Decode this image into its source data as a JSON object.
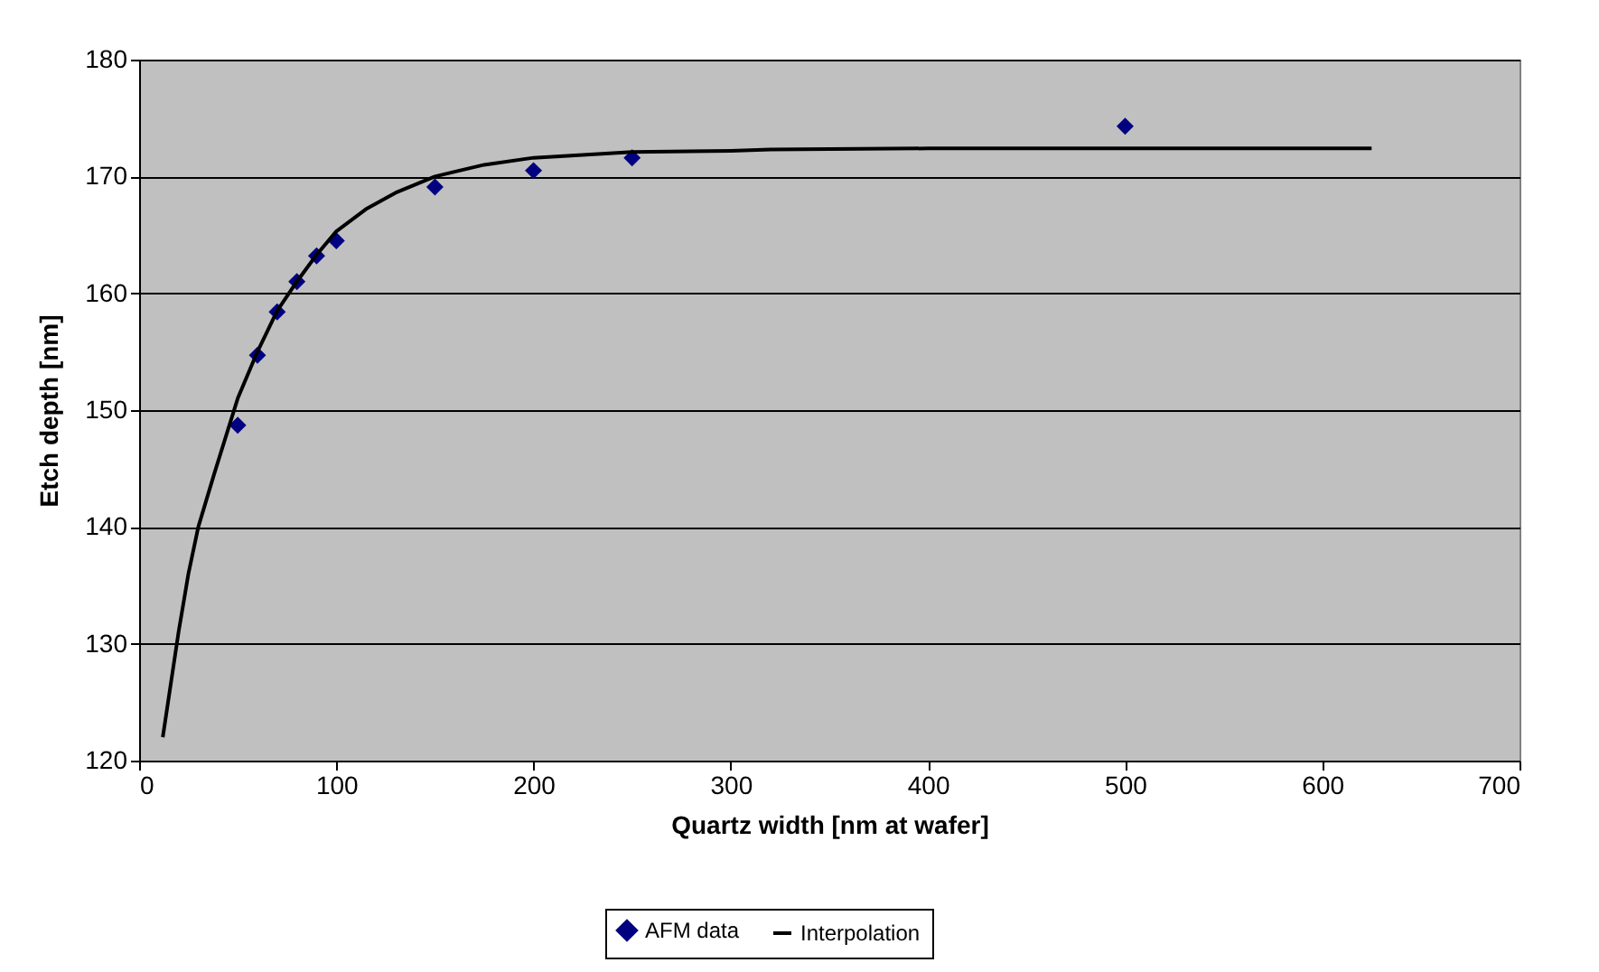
{
  "chart_data": {
    "type": "scatter",
    "xlabel": "Quartz width [nm at wafer]",
    "ylabel": "Etch depth [nm]",
    "xlim": [
      0,
      700
    ],
    "xticks": [
      0,
      100,
      200,
      300,
      400,
      500,
      600,
      700
    ],
    "ylim": [
      120,
      180
    ],
    "yticks": [
      120,
      130,
      140,
      150,
      160,
      170,
      180
    ],
    "grid": "y",
    "legend": "bottom",
    "series": [
      {
        "name": "AFM data",
        "marker": "diamond",
        "color": "#000080",
        "x": [
          50,
          60,
          70,
          80,
          90,
          100,
          150,
          200,
          250,
          500
        ],
        "values": [
          148.7,
          154.7,
          158.4,
          161.0,
          163.2,
          164.5,
          169.1,
          170.5,
          171.6,
          174.3
        ]
      },
      {
        "name": "Interpolation",
        "type": "line",
        "color": "#000000",
        "line_style": "solid",
        "x": [
          12,
          20,
          25,
          30,
          38,
          50,
          60,
          70,
          80,
          90,
          100,
          115,
          130,
          150,
          175,
          200,
          250,
          300,
          320,
          400,
          625
        ],
        "values": [
          122,
          131,
          136,
          140,
          144.5,
          151,
          155,
          158.5,
          161,
          163.3,
          165.3,
          167.2,
          168.6,
          170,
          171,
          171.6,
          172.1,
          172.2,
          172.3,
          172.4,
          172.4
        ]
      }
    ]
  }
}
